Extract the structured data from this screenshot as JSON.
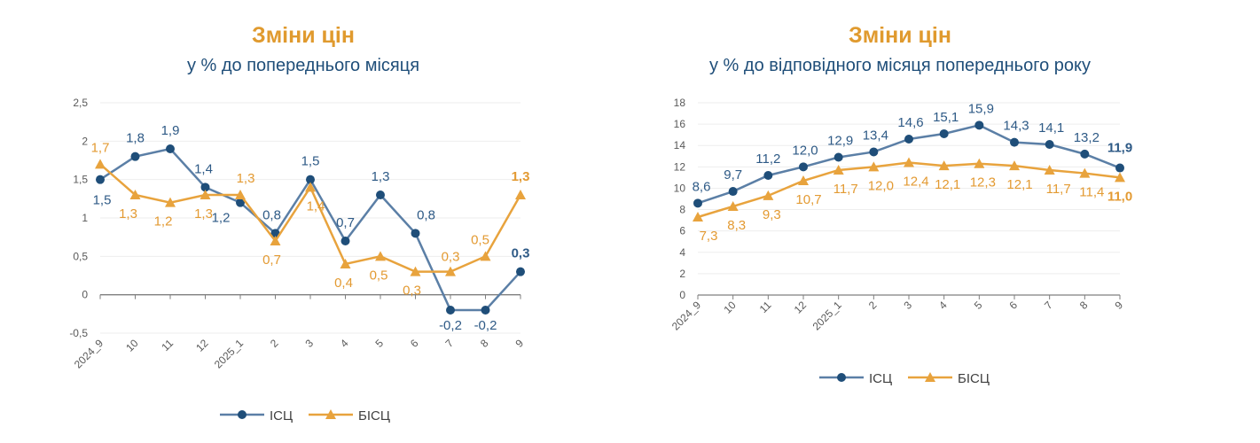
{
  "chart_data": [
    {
      "type": "line",
      "title": "Зміни цін",
      "subtitle": "у % до попереднього місяця",
      "categories": [
        "2024_9",
        "10",
        "11",
        "12",
        "2025_1",
        "2",
        "3",
        "4",
        "5",
        "6",
        "7",
        "8",
        "9"
      ],
      "ylim": [
        -0.5,
        2.5
      ],
      "yticks": [
        -0.5,
        0,
        0.5,
        1,
        1.5,
        2,
        2.5
      ],
      "ytick_labels": [
        "-0,5",
        "0",
        "0,5",
        "1",
        "1,5",
        "2",
        "2,5"
      ],
      "grid": true,
      "legend": "bottom",
      "series": [
        {
          "name": "ІСЦ",
          "marker": "circle",
          "values": [
            1.5,
            1.8,
            1.9,
            1.4,
            1.2,
            0.8,
            1.5,
            0.7,
            1.3,
            0.8,
            -0.2,
            -0.2,
            0.3
          ],
          "labels": [
            "1,5",
            "1,8",
            "1,9",
            "1,4",
            "1,2",
            "0,8",
            "1,5",
            "0,7",
            "1,3",
            "0,8",
            "-0,2",
            "-0,2",
            "0,3"
          ]
        },
        {
          "name": "БІСЦ",
          "marker": "triangle",
          "values": [
            1.7,
            1.3,
            1.2,
            1.3,
            1.3,
            0.7,
            1.4,
            0.4,
            0.5,
            0.3,
            0.3,
            0.5,
            1.3
          ],
          "labels": [
            "1,7",
            "1,3",
            "1,2",
            "1,3",
            "1,3",
            "0,7",
            "1,4",
            "0,4",
            "0,5",
            "0,3",
            "0,3",
            "0,5",
            "1,3"
          ]
        }
      ]
    },
    {
      "type": "line",
      "title": "Зміни цін",
      "subtitle": "у % до відповідного місяця попереднього року",
      "categories": [
        "2024_9",
        "10",
        "11",
        "12",
        "2025_1",
        "2",
        "3",
        "4",
        "5",
        "6",
        "7",
        "8",
        "9"
      ],
      "ylim": [
        0,
        18
      ],
      "yticks": [
        0,
        2,
        4,
        6,
        8,
        10,
        12,
        14,
        16,
        18
      ],
      "ytick_labels": [
        "0",
        "2",
        "4",
        "6",
        "8",
        "10",
        "12",
        "14",
        "16",
        "18"
      ],
      "grid": true,
      "legend": "bottom",
      "series": [
        {
          "name": "ІСЦ",
          "marker": "circle",
          "values": [
            8.6,
            9.7,
            11.2,
            12.0,
            12.9,
            13.4,
            14.6,
            15.1,
            15.9,
            14.3,
            14.1,
            13.2,
            11.9
          ],
          "labels": [
            "8,6",
            "9,7",
            "11,2",
            "12,0",
            "12,9",
            "13,4",
            "14,6",
            "15,1",
            "15,9",
            "14,3",
            "14,1",
            "13,2",
            "11,9"
          ]
        },
        {
          "name": "БІСЦ",
          "marker": "triangle",
          "values": [
            7.3,
            8.3,
            9.3,
            10.7,
            11.7,
            12.0,
            12.4,
            12.1,
            12.3,
            12.1,
            11.7,
            11.4,
            11.0
          ],
          "labels": [
            "7,3",
            "8,3",
            "9,3",
            "10,7",
            "11,7",
            "12,0",
            "12,4",
            "12,1",
            "12,3",
            "12,1",
            "11,7",
            "11,4",
            "11,0"
          ]
        }
      ]
    }
  ],
  "colors": {
    "isc_line": "#5B7FA6",
    "isc_marker": "#1F4E79",
    "isc_label": "#2E5A86",
    "bisc_line": "#E8A33D",
    "bisc_label": "#E39A32"
  }
}
